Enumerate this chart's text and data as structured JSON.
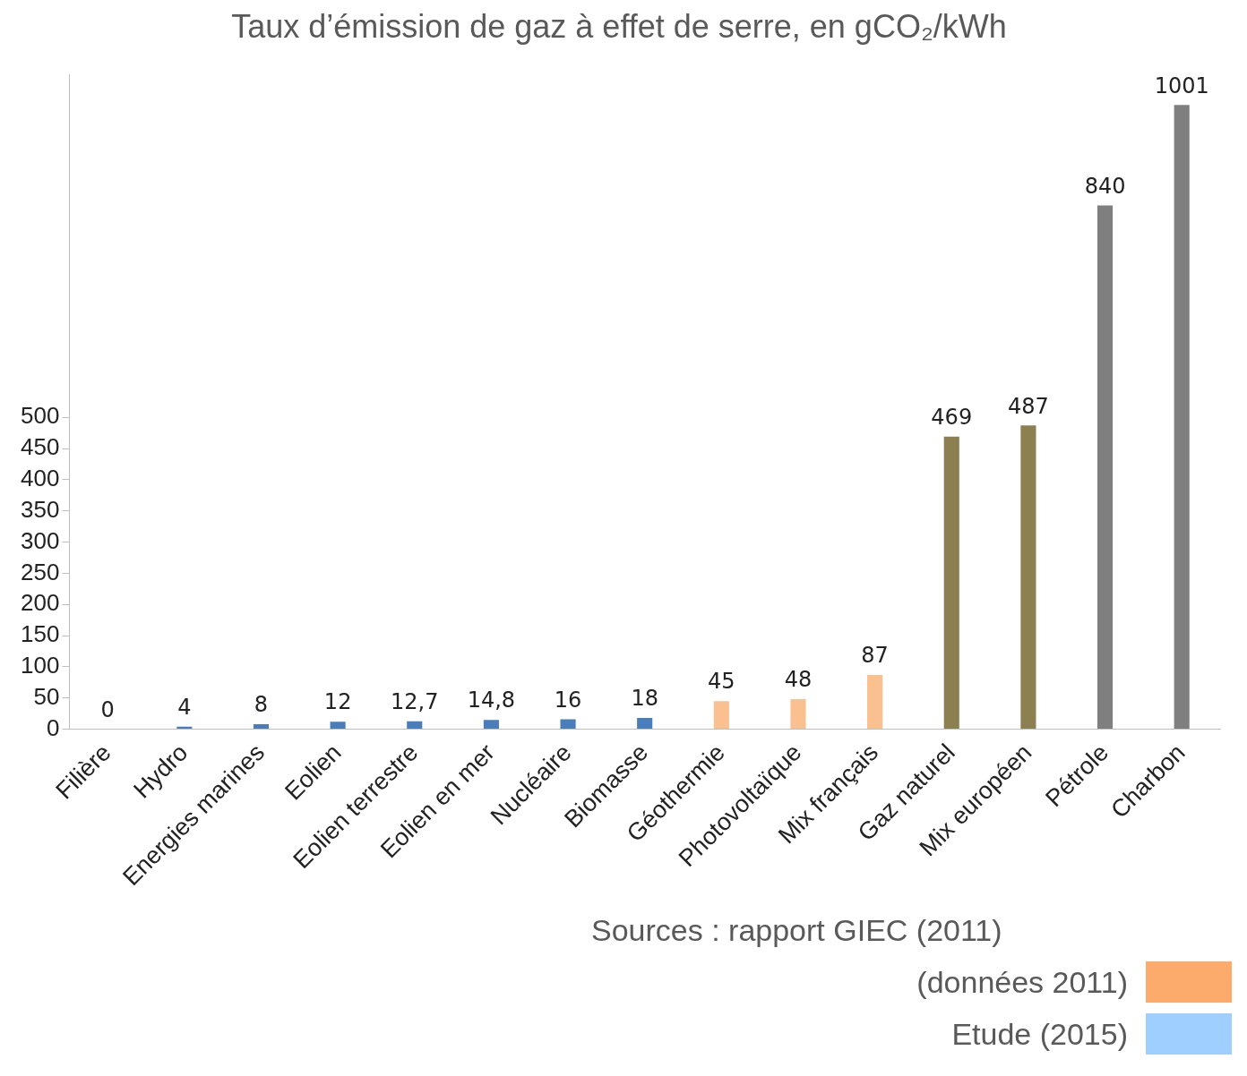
{
  "chart_data": {
    "type": "bar",
    "title": "Taux d’émission de gaz à effet de serre, en gCO₂/kWh",
    "categories": [
      "Filière",
      "Hydro",
      "Energies marines",
      "Eolien",
      "Eolien terrestre",
      "Eolien en mer",
      "Nucléaire",
      "Biomasse",
      "Géothermie",
      "Photovoltaïque",
      "Mix français",
      "Gaz naturel",
      "Mix européen",
      "Pétrole",
      "Charbon"
    ],
    "values": [
      0,
      4,
      8,
      12,
      12.7,
      14.8,
      16,
      18,
      45,
      48,
      87,
      469,
      487,
      840,
      1001
    ],
    "colors": [
      "#4a7ebb",
      "#4a7ebb",
      "#4a7ebb",
      "#4a7ebb",
      "#4a7ebb",
      "#4a7ebb",
      "#4a7ebb",
      "#4a7ebb",
      "#fac090",
      "#fac090",
      "#fac090",
      "#8c8050",
      "#8c8050",
      "#7f7f7f",
      "#7f7f7f"
    ],
    "value_labels": [
      "0",
      "4",
      "8",
      "12",
      "12,7",
      "14,8",
      "16",
      "18",
      "45",
      "48",
      "87",
      "469",
      "487",
      "840",
      "1001"
    ],
    "ylim": [
      0,
      1050
    ],
    "yticks": [
      0,
      50,
      100,
      150,
      200,
      250,
      300,
      350,
      400,
      450,
      500
    ],
    "grid": false,
    "legend": false,
    "annotations": [
      "Sources : rapport GIEC (2011)",
      "(données 2011)",
      "Etude (2015)"
    ]
  }
}
